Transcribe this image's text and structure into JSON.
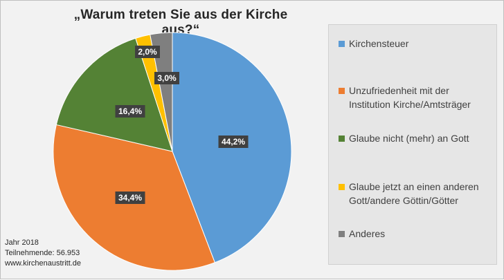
{
  "chart_data": {
    "type": "pie",
    "title": "„Warum treten Sie aus der Kirche aus?“",
    "categories": [
      "Kirchensteuer",
      "Unzufriedenheit mit der Institution Kirche/Amtsträger",
      "Glaube nicht (mehr) an Gott",
      "Glaube jetzt an einen anderen Gott/andere Göttin/Götter",
      "Anderes"
    ],
    "values": [
      44.2,
      34.4,
      16.4,
      2.0,
      3.0
    ],
    "data_labels": [
      "44,2%",
      "34,4%",
      "16,4%",
      "2,0%",
      "3,0%"
    ],
    "colors": [
      "#5b9bd5",
      "#ed7d31",
      "#548235",
      "#ffc000",
      "#7f7f7f"
    ],
    "legend_position": "right"
  },
  "legend": {
    "items": [
      {
        "label": "Kirchensteuer"
      },
      {
        "label": "Unzufriedenheit mit der\nInstitution Kirche/Amtsträger"
      },
      {
        "label": "Glaube nicht (mehr) an Gott"
      },
      {
        "label": "Glaube jetzt an einen anderen\nGott/andere Göttin/Götter"
      },
      {
        "label": "Anderes"
      }
    ]
  },
  "footnote": {
    "year": "Jahr 2018",
    "participants": "Teilnehmende: 56.953",
    "website": "www.kirchenaustritt.de"
  }
}
